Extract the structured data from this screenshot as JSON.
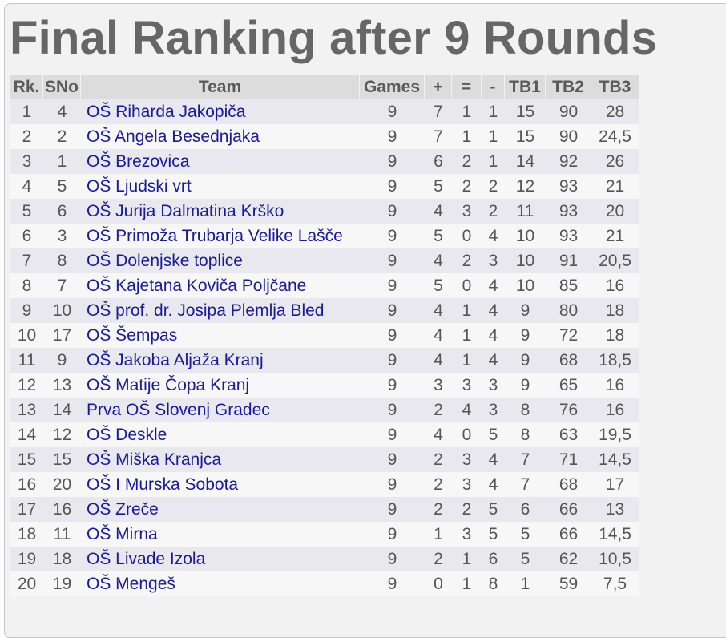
{
  "title": "Final Ranking after 9 Rounds",
  "table": {
    "headers": [
      "Rk.",
      "SNo",
      "Team",
      "Games",
      "+",
      "=",
      "-",
      "TB1",
      "TB2",
      "TB3"
    ],
    "rows": [
      [
        "1",
        "4",
        "OŠ Riharda Jakopiča",
        "9",
        "7",
        "1",
        "1",
        "15",
        "90",
        "28"
      ],
      [
        "2",
        "2",
        "OŠ Angela Besednjaka",
        "9",
        "7",
        "1",
        "1",
        "15",
        "90",
        "24,5"
      ],
      [
        "3",
        "1",
        "OŠ Brezovica",
        "9",
        "6",
        "2",
        "1",
        "14",
        "92",
        "26"
      ],
      [
        "4",
        "5",
        "OŠ Ljudski vrt",
        "9",
        "5",
        "2",
        "2",
        "12",
        "93",
        "21"
      ],
      [
        "5",
        "6",
        "OŠ Jurija Dalmatina Krško",
        "9",
        "4",
        "3",
        "2",
        "11",
        "93",
        "20"
      ],
      [
        "6",
        "3",
        "OŠ Primoža Trubarja Velike Lašče",
        "9",
        "5",
        "0",
        "4",
        "10",
        "93",
        "21"
      ],
      [
        "7",
        "8",
        "OŠ Dolenjske toplice",
        "9",
        "4",
        "2",
        "3",
        "10",
        "91",
        "20,5"
      ],
      [
        "8",
        "7",
        "OŠ Kajetana Koviča Poljčane",
        "9",
        "5",
        "0",
        "4",
        "10",
        "85",
        "16"
      ],
      [
        "9",
        "10",
        "OŠ prof. dr. Josipa Plemlja Bled",
        "9",
        "4",
        "1",
        "4",
        "9",
        "80",
        "18"
      ],
      [
        "10",
        "17",
        "OŠ Šempas",
        "9",
        "4",
        "1",
        "4",
        "9",
        "72",
        "18"
      ],
      [
        "11",
        "9",
        "OŠ Jakoba Aljaža Kranj",
        "9",
        "4",
        "1",
        "4",
        "9",
        "68",
        "18,5"
      ],
      [
        "12",
        "13",
        "OŠ Matije Čopa Kranj",
        "9",
        "3",
        "3",
        "3",
        "9",
        "65",
        "16"
      ],
      [
        "13",
        "14",
        "Prva OŠ Slovenj Gradec",
        "9",
        "2",
        "4",
        "3",
        "8",
        "76",
        "16"
      ],
      [
        "14",
        "12",
        "OŠ Deskle",
        "9",
        "4",
        "0",
        "5",
        "8",
        "63",
        "19,5"
      ],
      [
        "15",
        "15",
        "OŠ Miška Kranjca",
        "9",
        "2",
        "3",
        "4",
        "7",
        "71",
        "14,5"
      ],
      [
        "16",
        "20",
        "OŠ I Murska Sobota",
        "9",
        "2",
        "3",
        "4",
        "7",
        "68",
        "17"
      ],
      [
        "17",
        "16",
        "OŠ Zreče",
        "9",
        "2",
        "2",
        "5",
        "6",
        "66",
        "13"
      ],
      [
        "18",
        "11",
        "OŠ Mirna",
        "9",
        "1",
        "3",
        "5",
        "5",
        "66",
        "14,5"
      ],
      [
        "19",
        "18",
        "OŠ Livade Izola",
        "9",
        "2",
        "1",
        "6",
        "5",
        "62",
        "10,5"
      ],
      [
        "20",
        "19",
        "OŠ Mengeš",
        "9",
        "0",
        "1",
        "8",
        "1",
        "59",
        "7,5"
      ]
    ]
  },
  "colors": {
    "title": "#666666",
    "team_link": "#1a1a9a",
    "header_bg": "#dcdcdc",
    "row_odd_bg": "#e8e8ee",
    "row_even_bg": "#f7f7f7",
    "panel_bg": "#f2f2f2"
  }
}
